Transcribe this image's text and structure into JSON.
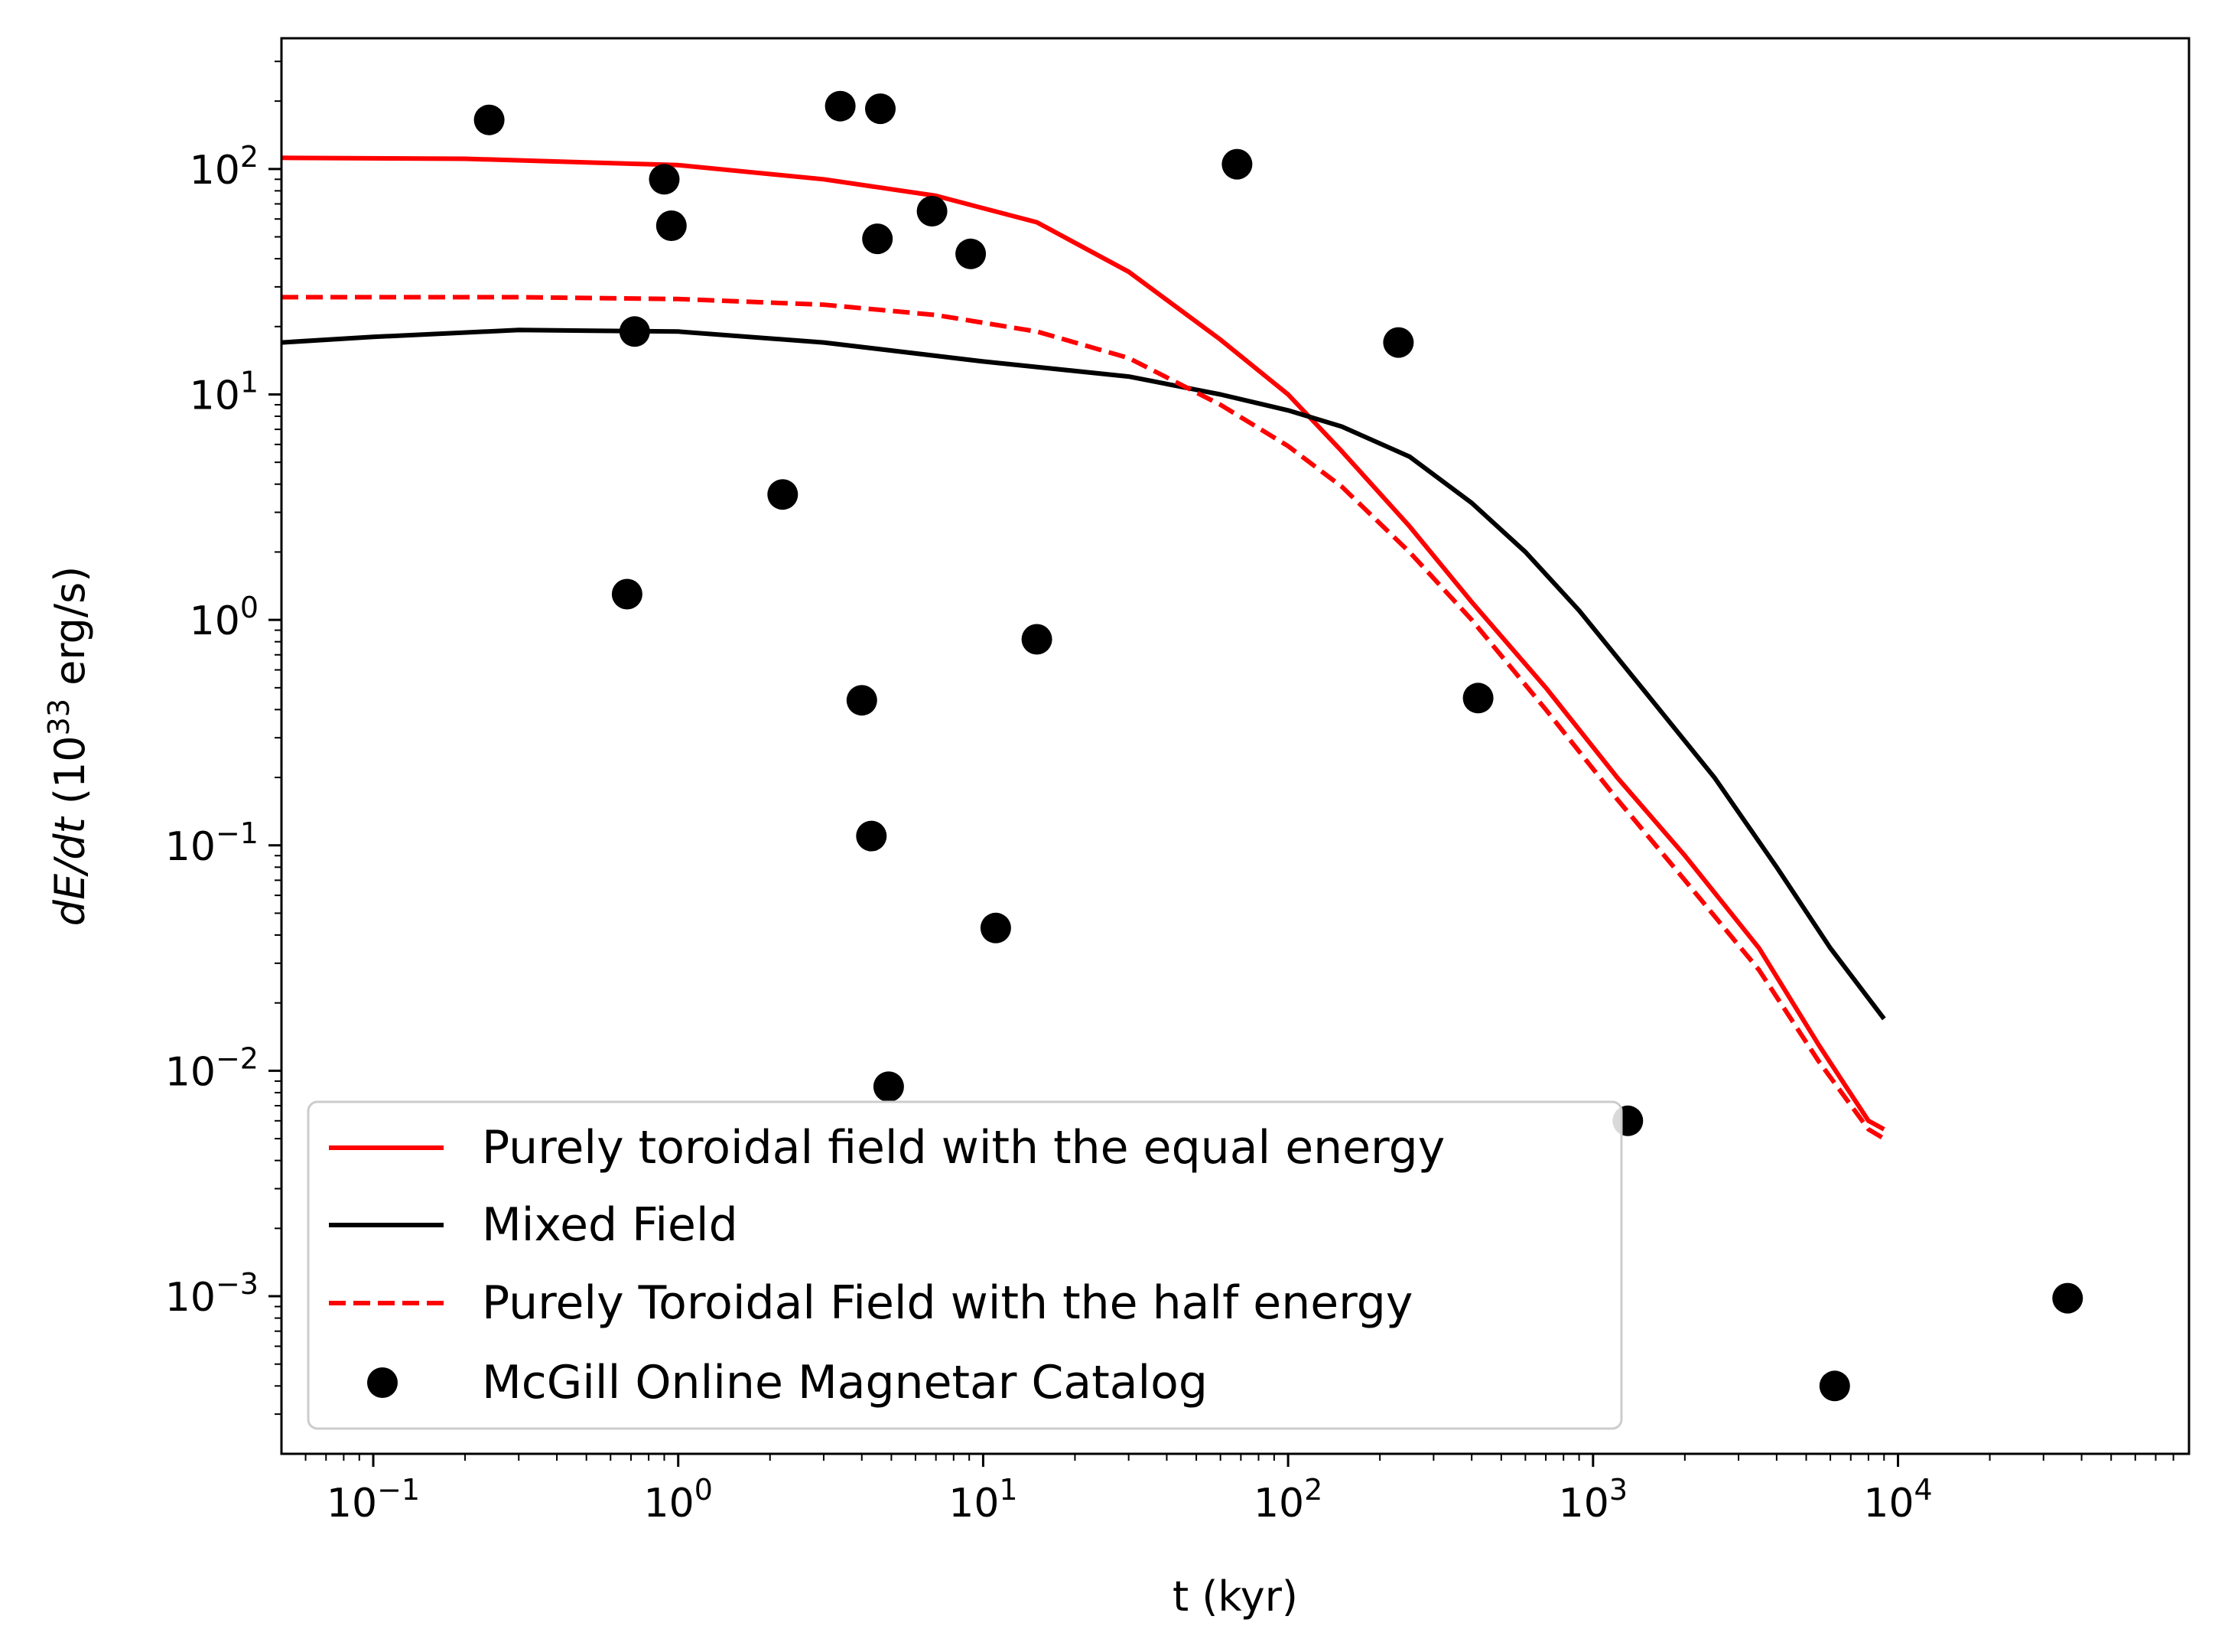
{
  "chart_data": {
    "type": "line",
    "title": "",
    "xlabel": "t (kyr)",
    "ylabel": {
      "prefix": "dE/dt",
      "open": " (10",
      "exponent": "33",
      "close": " erg/s)"
    },
    "xscale": "log",
    "yscale": "log",
    "xlim": [
      0.05,
      90000
    ],
    "ylim": [
      0.0002,
      380
    ],
    "x_ticks": [
      {
        "value": 0.1,
        "base": "10",
        "exp": "−1"
      },
      {
        "value": 1,
        "base": "10",
        "exp": "0"
      },
      {
        "value": 10,
        "base": "10",
        "exp": "1"
      },
      {
        "value": 100,
        "base": "10",
        "exp": "2"
      },
      {
        "value": 1000,
        "base": "10",
        "exp": "3"
      },
      {
        "value": 10000,
        "base": "10",
        "exp": "4"
      }
    ],
    "y_ticks": [
      {
        "value": 0.001,
        "base": "10",
        "exp": "−3"
      },
      {
        "value": 0.01,
        "base": "10",
        "exp": "−2"
      },
      {
        "value": 0.1,
        "base": "10",
        "exp": "−1"
      },
      {
        "value": 1,
        "base": "10",
        "exp": "0"
      },
      {
        "value": 10,
        "base": "10",
        "exp": "1"
      },
      {
        "value": 100,
        "base": "10",
        "exp": "2"
      }
    ],
    "legend_position": "lower-left",
    "series": [
      {
        "name": "Purely toroidal field with the equal energy",
        "style": "solid",
        "color": "#ff0000",
        "x": [
          0.05,
          0.2,
          1,
          3,
          7,
          15,
          30,
          60,
          100,
          150,
          250,
          400,
          700,
          1200,
          2000,
          3500,
          5500,
          8000,
          9000
        ],
        "y": [
          112,
          111,
          104,
          90,
          76,
          58,
          35,
          17.5,
          10,
          5.6,
          2.6,
          1.2,
          0.5,
          0.2,
          0.09,
          0.035,
          0.013,
          0.006,
          0.0055
        ]
      },
      {
        "name": "Mixed Field",
        "style": "solid",
        "color": "#000000",
        "x": [
          0.05,
          0.1,
          0.3,
          1,
          3,
          10,
          30,
          60,
          100,
          150,
          250,
          400,
          600,
          900,
          1500,
          2500,
          4000,
          6000,
          9000
        ],
        "y": [
          17,
          18,
          19.3,
          19,
          17,
          14,
          12,
          10,
          8.5,
          7.2,
          5.3,
          3.3,
          2,
          1.1,
          0.47,
          0.2,
          0.08,
          0.035,
          0.017
        ]
      },
      {
        "name": "Purely Toroidal Field with the half energy",
        "style": "dashed",
        "color": "#ff0000",
        "x": [
          0.05,
          0.3,
          1,
          3,
          7,
          15,
          30,
          60,
          100,
          150,
          250,
          400,
          700,
          1200,
          2000,
          3500,
          5500,
          8000,
          9000
        ],
        "y": [
          27,
          27,
          26.5,
          25,
          22.5,
          19,
          14.5,
          9,
          5.9,
          3.9,
          2,
          1,
          0.4,
          0.16,
          0.07,
          0.028,
          0.011,
          0.0055,
          0.005
        ]
      }
    ],
    "scatter": {
      "name": "McGill Online Magnetar Catalog",
      "color": "#000000",
      "points": [
        {
          "x": 0.24,
          "y": 165
        },
        {
          "x": 0.9,
          "y": 90
        },
        {
          "x": 0.95,
          "y": 56
        },
        {
          "x": 0.72,
          "y": 19
        },
        {
          "x": 0.68,
          "y": 1.3
        },
        {
          "x": 2.2,
          "y": 3.6
        },
        {
          "x": 3.4,
          "y": 190
        },
        {
          "x": 4.6,
          "y": 185
        },
        {
          "x": 4.5,
          "y": 49
        },
        {
          "x": 6.8,
          "y": 65
        },
        {
          "x": 9.1,
          "y": 42
        },
        {
          "x": 4.0,
          "y": 0.44
        },
        {
          "x": 4.3,
          "y": 0.11
        },
        {
          "x": 4.9,
          "y": 0.0085
        },
        {
          "x": 11,
          "y": 0.043
        },
        {
          "x": 15,
          "y": 0.82
        },
        {
          "x": 68,
          "y": 105
        },
        {
          "x": 230,
          "y": 17
        },
        {
          "x": 420,
          "y": 0.45
        },
        {
          "x": 1300,
          "y": 0.006
        },
        {
          "x": 6200,
          "y": 0.0004
        },
        {
          "x": 36000,
          "y": 0.00098
        }
      ]
    }
  }
}
